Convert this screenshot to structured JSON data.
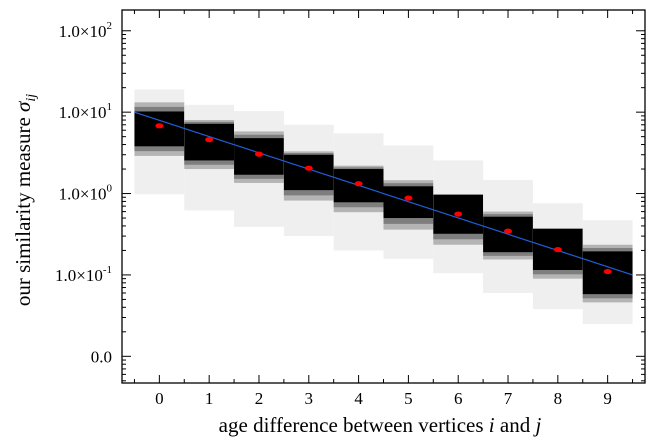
{
  "chart_data": {
    "type": "box-band",
    "xlabel": {
      "prefix": "age difference between vertices ",
      "i": "i",
      "mid": " and ",
      "j": "j"
    },
    "ylabel": {
      "prefix": "our similarity measure ",
      "sym": "σ",
      "sub": "ij"
    },
    "x_ticks": [
      "0",
      "1",
      "2",
      "3",
      "4",
      "5",
      "6",
      "7",
      "8",
      "9"
    ],
    "y_ticks": [
      {
        "value": 100,
        "mant": "1.0×10",
        "exp": "2"
      },
      {
        "value": 10,
        "mant": "1.0×10",
        "exp": "1"
      },
      {
        "value": 1,
        "mant": "1.0×10",
        "exp": "0"
      },
      {
        "value": 0.1,
        "mant": "1.0×10",
        "exp": "-1"
      },
      {
        "value": 0.01,
        "mant": "0.0",
        "exp": ""
      }
    ],
    "y_scale": "log",
    "xlim": [
      -0.75,
      9.75
    ],
    "ylim": [
      0.0047,
      180
    ],
    "x": [
      0,
      1,
      2,
      3,
      4,
      5,
      6,
      7,
      8,
      9
    ],
    "median": [
      6.8,
      4.6,
      3.05,
      2.05,
      1.32,
      0.88,
      0.56,
      0.345,
      0.205,
      0.11
    ],
    "band_central": [
      [
        3.8,
        10.2
      ],
      [
        2.55,
        7.2
      ],
      [
        1.7,
        4.8
      ],
      [
        1.1,
        3.0
      ],
      [
        0.78,
        2.0
      ],
      [
        0.5,
        1.23
      ],
      [
        0.32,
        0.97
      ],
      [
        0.19,
        0.52
      ],
      [
        0.115,
        0.37
      ],
      [
        0.058,
        0.195
      ]
    ],
    "band_mid": [
      [
        2.9,
        13.2
      ],
      [
        2.0,
        8.0
      ],
      [
        1.35,
        5.8
      ],
      [
        0.82,
        3.3
      ],
      [
        0.59,
        2.2
      ],
      [
        0.36,
        1.46
      ],
      [
        0.235,
        0.97
      ],
      [
        0.155,
        0.6
      ],
      [
        0.09,
        0.37
      ],
      [
        0.046,
        0.235
      ]
    ],
    "band_outer": [
      [
        0.98,
        19.0
      ],
      [
        0.62,
        12.3
      ],
      [
        0.39,
        10.3
      ],
      [
        0.3,
        7.0
      ],
      [
        0.2,
        5.5
      ],
      [
        0.158,
        3.9
      ],
      [
        0.105,
        2.55
      ],
      [
        0.06,
        1.47
      ],
      [
        0.038,
        0.76
      ],
      [
        0.025,
        0.47
      ]
    ],
    "fit_line": {
      "x": [
        -0.5,
        9.5
      ],
      "y": [
        10.0,
        0.1
      ]
    },
    "colors": {
      "central": "#000000",
      "mid_dark": "#7e7e7e",
      "mid_light": "#b4b4b4",
      "outer": "#efefef",
      "median": "#ff0000",
      "fit": "#1f5fd8"
    }
  }
}
